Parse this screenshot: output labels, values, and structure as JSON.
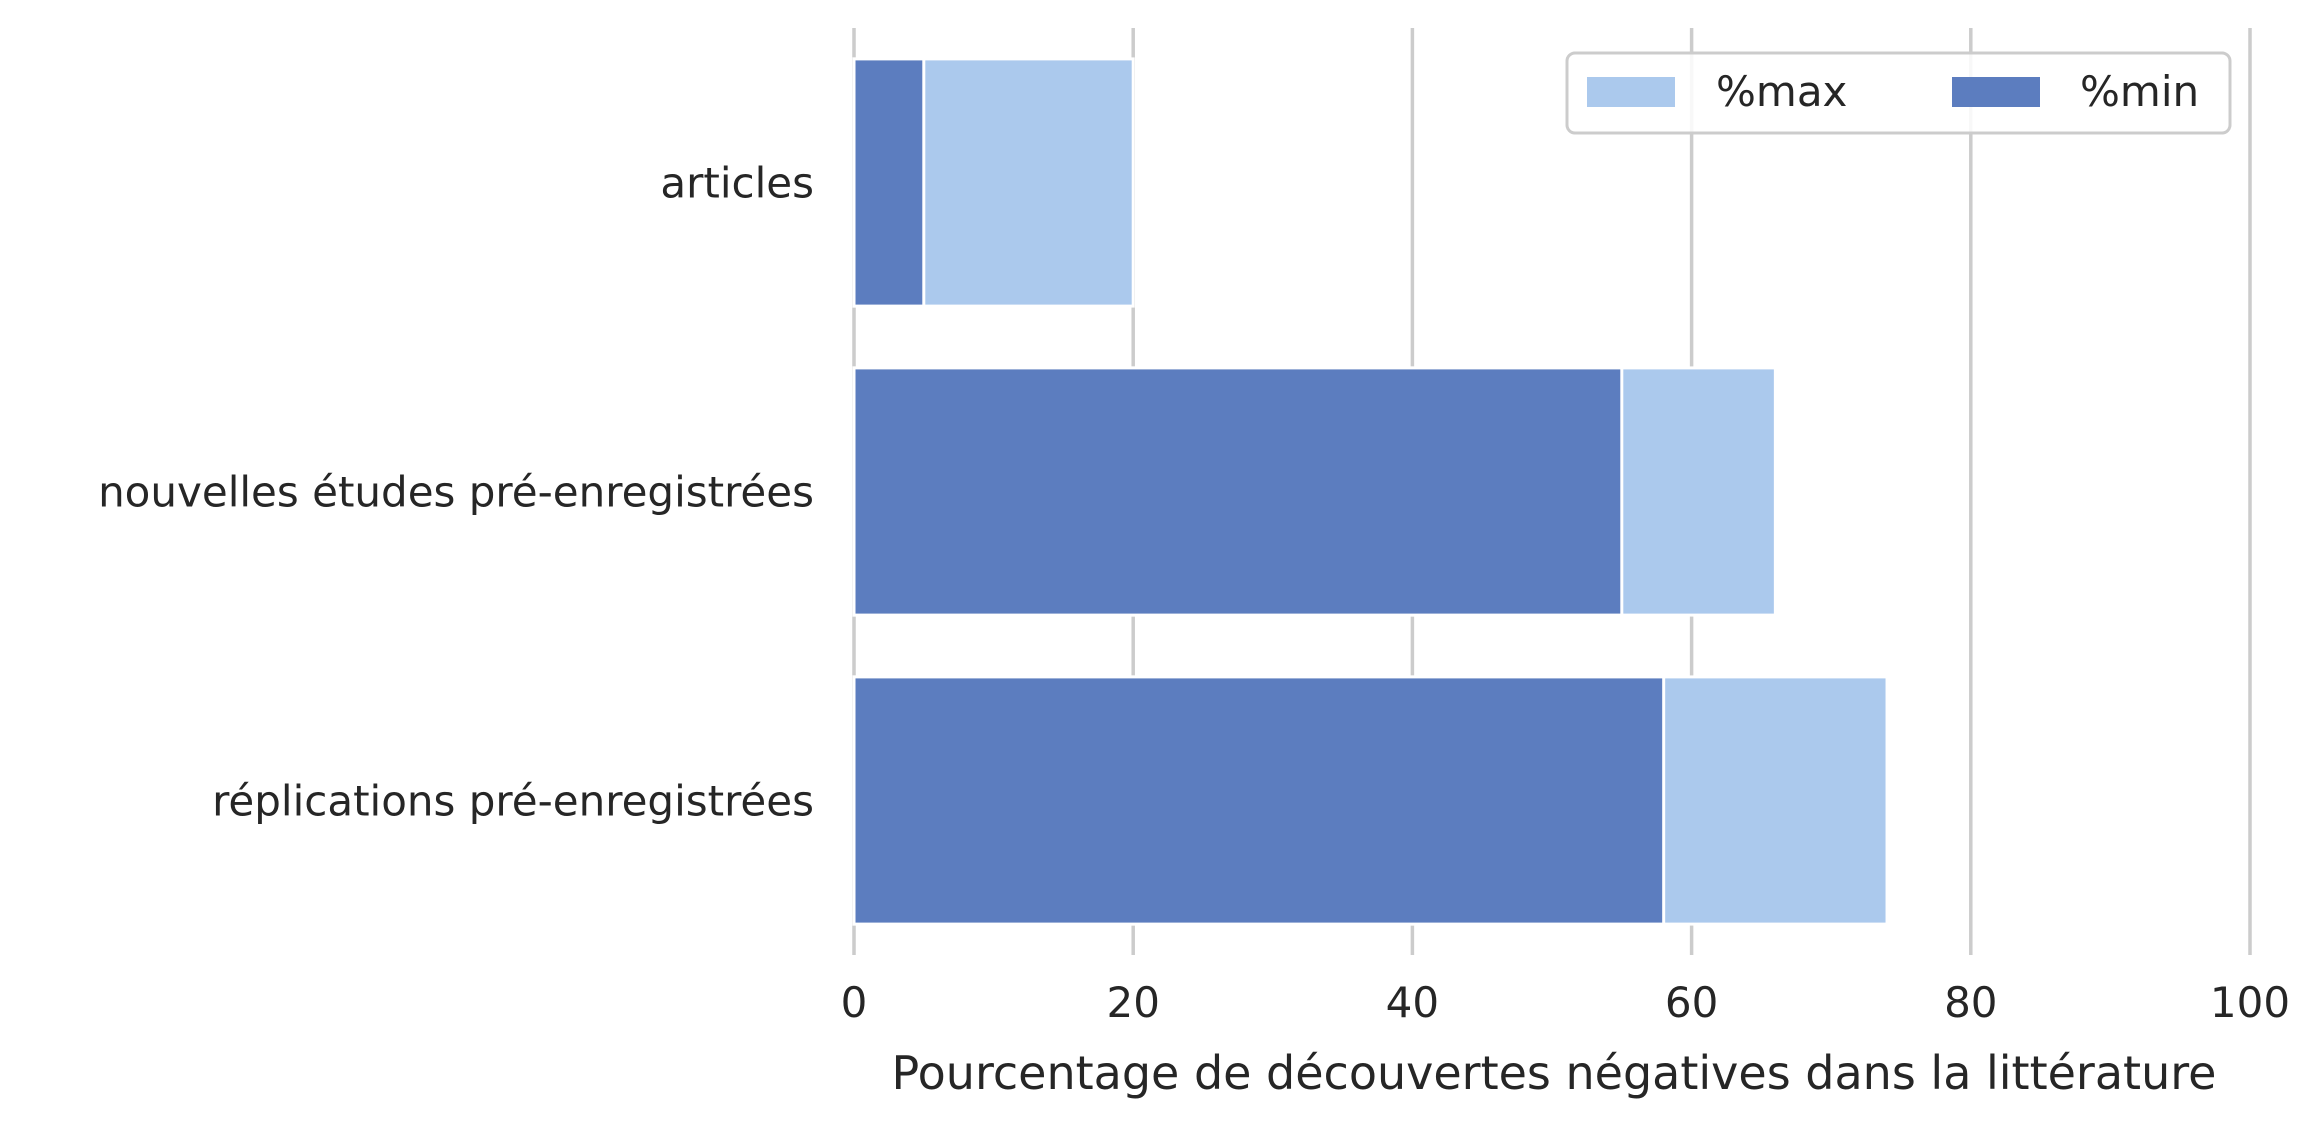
{
  "chart_data": {
    "type": "bar",
    "orientation": "horizontal",
    "stacking": "overlay",
    "categories": [
      "articles",
      "nouvelles études pré-enregistrées",
      "réplications pré-enregistrées"
    ],
    "series": [
      {
        "name": "%max",
        "values": [
          20,
          66,
          74
        ],
        "color": "#abc9ed"
      },
      {
        "name": "%min",
        "values": [
          5,
          55,
          58
        ],
        "color": "#5c7dbf"
      }
    ],
    "xlabel": "Pourcentage de découvertes négatives dans la littérature",
    "ylabel": "",
    "xlim": [
      0,
      100
    ],
    "xticks": [
      0,
      20,
      40,
      60,
      80,
      100
    ],
    "grid": "vertical",
    "legend": {
      "placement": "top-right",
      "columns": 2
    }
  }
}
